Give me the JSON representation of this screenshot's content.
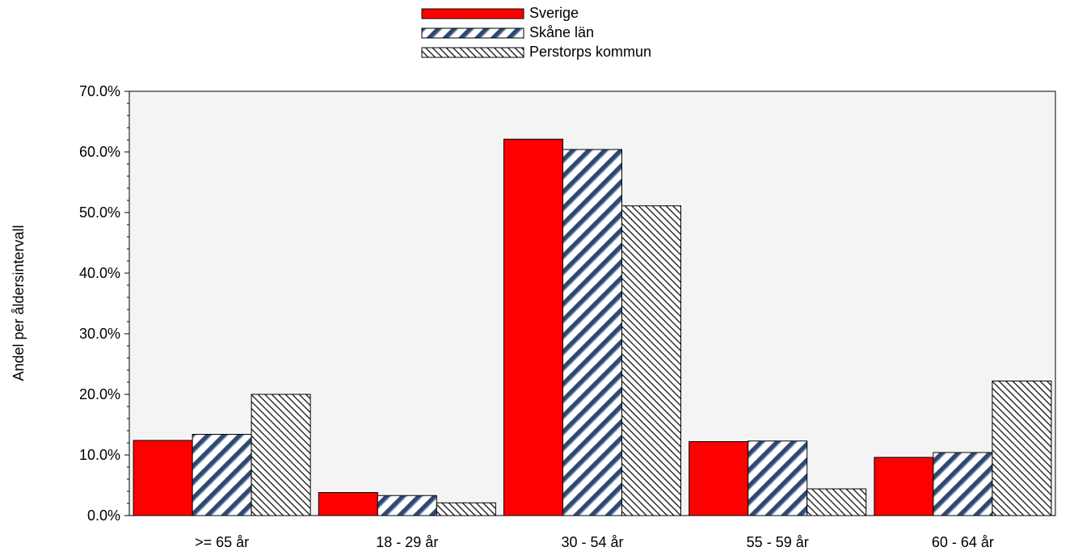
{
  "chart_data": {
    "type": "bar",
    "title": "",
    "xlabel": "",
    "ylabel": "Andel per åldersintervall",
    "categories": [
      ">= 65 år",
      "18 - 29 år",
      "30 - 54 år",
      "55 - 59 år",
      "60 - 64 år"
    ],
    "series": [
      {
        "name": "Sverige",
        "values": [
          12.4,
          3.8,
          62.1,
          12.2,
          9.6
        ]
      },
      {
        "name": "Skåne län",
        "values": [
          13.4,
          3.3,
          60.4,
          12.3,
          10.4
        ]
      },
      {
        "name": "Perstorps kommun",
        "values": [
          20.0,
          2.1,
          51.1,
          4.4,
          22.2
        ]
      }
    ],
    "ylim": [
      0,
      70
    ],
    "yticks": [
      "0.0%",
      "10.0%",
      "20.0%",
      "30.0%",
      "40.0%",
      "50.0%",
      "60.0%",
      "70.0%"
    ],
    "grid": false,
    "legend_position": "top-center",
    "colors": {
      "sverige": "#ff0000",
      "skane_stripe": "#2f4a6e",
      "perstorp_hatch": "#000000",
      "plot_background": "#f4f4f4"
    }
  }
}
